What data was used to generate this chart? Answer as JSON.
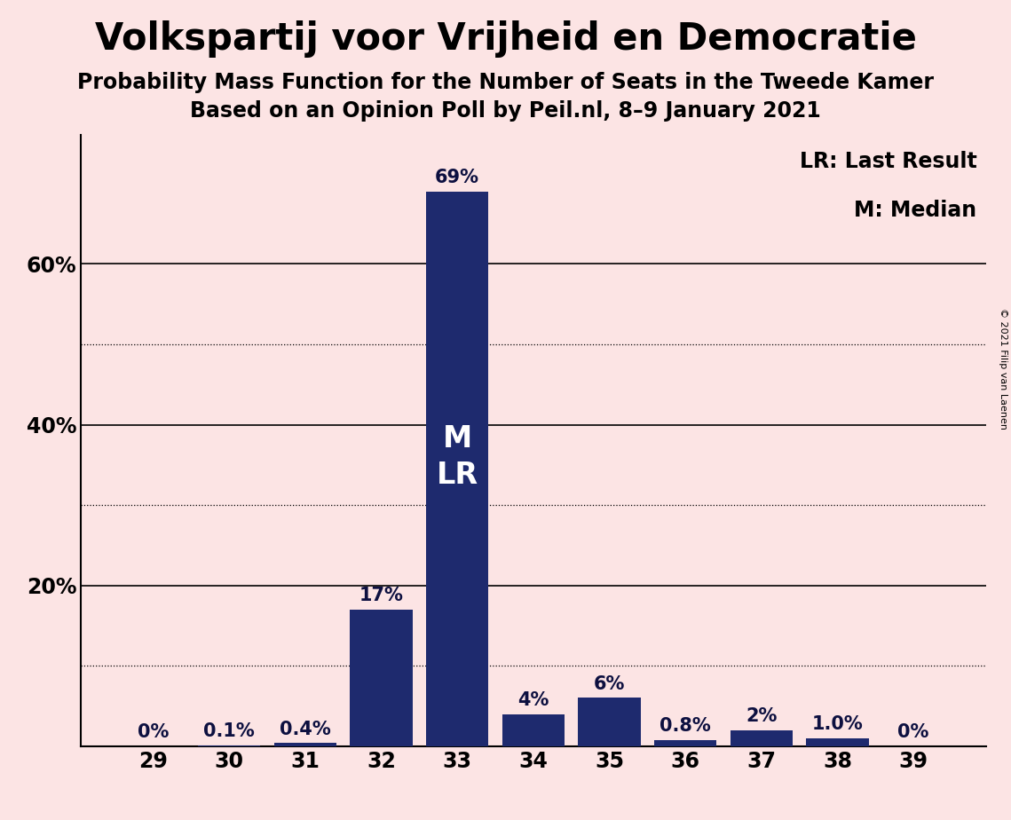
{
  "title": "Volkspartij voor Vrijheid en Democratie",
  "subtitle1": "Probability Mass Function for the Number of Seats in the Tweede Kamer",
  "subtitle2": "Based on an Opinion Poll by Peil.nl, 8–9 January 2021",
  "categories": [
    29,
    30,
    31,
    32,
    33,
    34,
    35,
    36,
    37,
    38,
    39
  ],
  "values": [
    0.0,
    0.1,
    0.4,
    17.0,
    69.0,
    4.0,
    6.0,
    0.8,
    2.0,
    1.0,
    0.0
  ],
  "labels": [
    "0%",
    "0.1%",
    "0.4%",
    "17%",
    "69%",
    "4%",
    "6%",
    "0.8%",
    "2%",
    "1.0%",
    "0%"
  ],
  "bar_color": "#1e2a6e",
  "background_color": "#fce4e4",
  "label_color_outside": "#0d1040",
  "label_color_inside": "#ffffff",
  "median_seat": 33,
  "lr_seat": 33,
  "median_label": "M",
  "lr_label": "LR",
  "solid_yticks": [
    20,
    40,
    60
  ],
  "dotted_yticks": [
    10,
    30,
    50
  ],
  "ylim": [
    0,
    76
  ],
  "legend_text_lr": "LR: Last Result",
  "legend_text_m": "M: Median",
  "copyright_text": "© 2021 Filip van Laenen",
  "title_fontsize": 30,
  "subtitle1_fontsize": 17,
  "subtitle2_fontsize": 17,
  "label_fontsize": 15,
  "axis_fontsize": 17,
  "legend_fontsize": 17,
  "ml_label_fontsize": 24,
  "copyright_fontsize": 8
}
